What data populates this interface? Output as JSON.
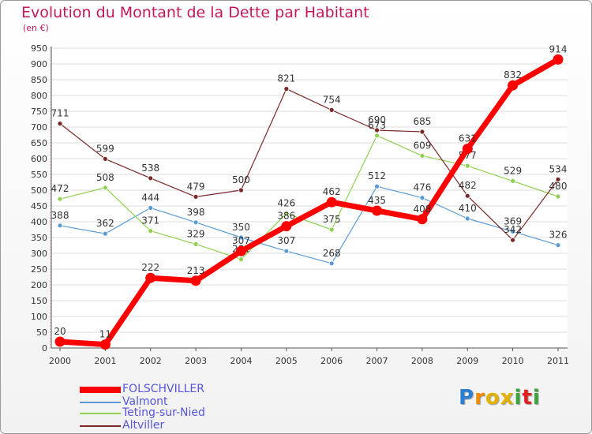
{
  "title": "Evolution du Montant de la Dette par Habitant",
  "subtitle": "(en €)",
  "logo": {
    "letters": [
      "P",
      "r",
      "o",
      "x",
      "i",
      "t",
      "i"
    ],
    "colors": [
      "#2a7fd4",
      "#f08a00",
      "#e5b100",
      "#e5b100",
      "#3aa53a",
      "#e02020",
      "#3aa53a"
    ]
  },
  "chart_data": {
    "type": "line",
    "title": "Evolution du Montant de la Dette par Habitant",
    "subtitle": "(en €)",
    "x": [
      "2000",
      "2001",
      "2002",
      "2003",
      "2004",
      "2005",
      "2006",
      "2007",
      "2008",
      "2009",
      "2010",
      "2011"
    ],
    "ylim": [
      0,
      950
    ],
    "yticks": [
      0,
      50,
      100,
      150,
      200,
      250,
      300,
      350,
      400,
      450,
      500,
      550,
      600,
      650,
      700,
      750,
      800,
      850,
      900,
      950
    ],
    "grid": true,
    "legend_position": "bottom-left",
    "series": [
      {
        "name": "Valmont",
        "color": "#5b9bd5",
        "width": 1.2,
        "values": [
          388,
          362,
          444,
          398,
          350,
          307,
          268,
          512,
          476,
          410,
          369,
          326
        ],
        "labels": [
          "388",
          "362",
          "444",
          "398",
          "350",
          "307",
          "268",
          "512",
          "476",
          "410",
          "369",
          "326"
        ]
      },
      {
        "name": "Teting-sur-Nied",
        "color": "#8fd14f",
        "width": 1.2,
        "values": [
          472,
          508,
          371,
          329,
          281,
          426,
          375,
          673,
          609,
          577,
          529,
          480
        ],
        "labels": [
          "472",
          "508",
          "371",
          "329",
          "281",
          "426",
          "375",
          "673",
          "609",
          "577",
          "529",
          "480"
        ]
      },
      {
        "name": "Altviller",
        "color": "#7a2828",
        "width": 1.2,
        "values": [
          711,
          599,
          538,
          479,
          500,
          821,
          754,
          690,
          685,
          482,
          342,
          534
        ],
        "labels": [
          "711",
          "599",
          "538",
          "479",
          "500",
          "821",
          "754",
          "690",
          "685",
          "482",
          "342",
          "534"
        ]
      },
      {
        "name": "FOLSCHVILLER",
        "color": "#ff0000",
        "width": 7,
        "values": [
          20,
          11,
          222,
          213,
          307,
          386,
          462,
          435,
          408,
          631,
          832,
          914
        ],
        "labels": [
          "20",
          "11",
          "222",
          "213",
          "307",
          "386",
          "462",
          "435",
          "408",
          "631",
          "832",
          "914"
        ]
      }
    ],
    "legend": [
      "FOLSCHVILLER",
      "Valmont",
      "Teting-sur-Nied",
      "Altviller"
    ]
  }
}
